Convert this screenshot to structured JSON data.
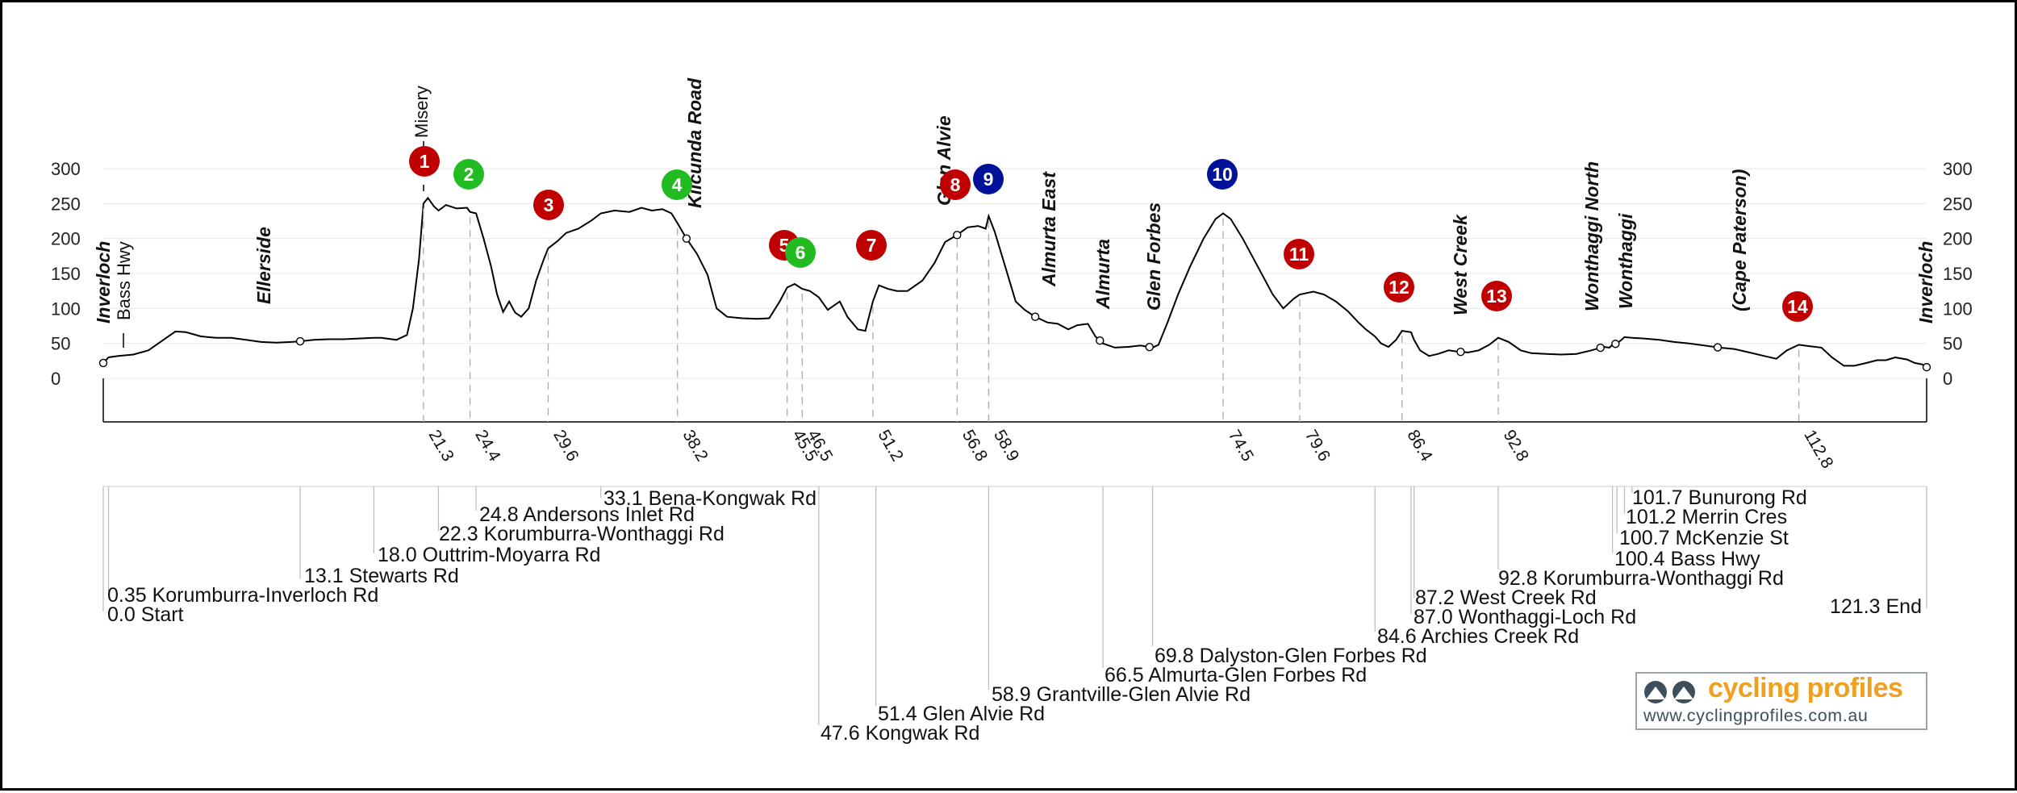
{
  "chart_data": {
    "type": "line",
    "title": "",
    "xlabel": "",
    "ylabel": "",
    "y_ticks": [
      "300",
      "250",
      "200",
      "150",
      "100",
      "50",
      "0"
    ],
    "ylim": [
      0,
      300
    ],
    "xlim": [
      0,
      121.3
    ],
    "grid": true,
    "profile": [
      [
        0,
        22
      ],
      [
        0.35,
        30
      ],
      [
        1,
        32
      ],
      [
        2,
        34
      ],
      [
        3,
        40
      ],
      [
        4,
        55
      ],
      [
        4.8,
        67
      ],
      [
        5.5,
        66
      ],
      [
        6.5,
        60
      ],
      [
        7.5,
        58
      ],
      [
        8.5,
        58
      ],
      [
        9.5,
        55
      ],
      [
        10.5,
        52
      ],
      [
        11.5,
        51
      ],
      [
        12.5,
        52
      ],
      [
        13.1,
        53
      ],
      [
        14,
        55
      ],
      [
        15,
        56
      ],
      [
        16,
        56
      ],
      [
        17,
        57
      ],
      [
        18,
        58
      ],
      [
        18.5,
        58
      ],
      [
        19.5,
        55
      ],
      [
        20.2,
        62
      ],
      [
        20.6,
        100
      ],
      [
        21,
        170
      ],
      [
        21.3,
        250
      ],
      [
        21.6,
        258
      ],
      [
        22,
        246
      ],
      [
        22.3,
        240
      ],
      [
        22.8,
        248
      ],
      [
        23.5,
        243
      ],
      [
        24.2,
        244
      ],
      [
        24.4,
        238
      ],
      [
        24.8,
        236
      ],
      [
        25.3,
        200
      ],
      [
        25.8,
        160
      ],
      [
        26.2,
        120
      ],
      [
        26.6,
        95
      ],
      [
        27,
        110
      ],
      [
        27.4,
        94
      ],
      [
        27.8,
        88
      ],
      [
        28.3,
        100
      ],
      [
        28.8,
        140
      ],
      [
        29.3,
        170
      ],
      [
        29.6,
        186
      ],
      [
        30.2,
        196
      ],
      [
        30.8,
        208
      ],
      [
        31.6,
        214
      ],
      [
        32.5,
        226
      ],
      [
        33.1,
        236
      ],
      [
        34,
        240
      ],
      [
        35,
        238
      ],
      [
        35.8,
        244
      ],
      [
        36.5,
        240
      ],
      [
        37.2,
        242
      ],
      [
        37.8,
        236
      ],
      [
        38.2,
        222
      ],
      [
        38.8,
        200
      ],
      [
        39.5,
        178
      ],
      [
        40.2,
        148
      ],
      [
        40.8,
        100
      ],
      [
        41.5,
        88
      ],
      [
        42.5,
        86
      ],
      [
        43.5,
        85
      ],
      [
        44.3,
        86
      ],
      [
        45,
        110
      ],
      [
        45.5,
        130
      ],
      [
        46,
        135
      ],
      [
        46.5,
        128
      ],
      [
        47,
        125
      ],
      [
        47.6,
        116
      ],
      [
        48.2,
        98
      ],
      [
        49,
        110
      ],
      [
        49.5,
        88
      ],
      [
        50.2,
        70
      ],
      [
        50.7,
        68
      ],
      [
        51.2,
        110
      ],
      [
        51.6,
        133
      ],
      [
        52.2,
        128
      ],
      [
        52.8,
        125
      ],
      [
        53.5,
        125
      ],
      [
        54.5,
        140
      ],
      [
        55.3,
        165
      ],
      [
        56,
        195
      ],
      [
        56.8,
        205
      ],
      [
        57.5,
        216
      ],
      [
        58.2,
        218
      ],
      [
        58.7,
        214
      ],
      [
        58.9,
        232
      ],
      [
        59.3,
        210
      ],
      [
        60,
        160
      ],
      [
        60.7,
        110
      ],
      [
        61.3,
        98
      ],
      [
        62,
        88
      ],
      [
        62.8,
        80
      ],
      [
        63.5,
        78
      ],
      [
        64.2,
        70
      ],
      [
        64.8,
        76
      ],
      [
        65.5,
        78
      ],
      [
        66,
        60
      ],
      [
        66.5,
        50
      ],
      [
        67.3,
        44
      ],
      [
        68.2,
        45
      ],
      [
        69,
        47
      ],
      [
        69.8,
        44
      ],
      [
        70.2,
        48
      ],
      [
        70.8,
        80
      ],
      [
        71.5,
        120
      ],
      [
        72.3,
        160
      ],
      [
        73.2,
        200
      ],
      [
        74,
        228
      ],
      [
        74.5,
        236
      ],
      [
        75,
        228
      ],
      [
        75.8,
        200
      ],
      [
        76.8,
        160
      ],
      [
        77.8,
        120
      ],
      [
        78.5,
        100
      ],
      [
        79.2,
        114
      ],
      [
        79.6,
        120
      ],
      [
        80.5,
        124
      ],
      [
        81.2,
        120
      ],
      [
        82,
        110
      ],
      [
        82.8,
        96
      ],
      [
        83.5,
        80
      ],
      [
        84,
        70
      ],
      [
        84.6,
        60
      ],
      [
        85,
        50
      ],
      [
        85.5,
        45
      ],
      [
        86,
        55
      ],
      [
        86.4,
        68
      ],
      [
        87,
        66
      ],
      [
        87.2,
        55
      ],
      [
        87.6,
        40
      ],
      [
        88.2,
        32
      ],
      [
        88.8,
        35
      ],
      [
        89.5,
        40
      ],
      [
        90.2,
        38
      ],
      [
        90.8,
        37
      ],
      [
        91.5,
        40
      ],
      [
        92.2,
        48
      ],
      [
        92.8,
        58
      ],
      [
        93.5,
        52
      ],
      [
        94.3,
        40
      ],
      [
        95,
        36
      ],
      [
        96,
        35
      ],
      [
        97,
        34
      ],
      [
        98,
        35
      ],
      [
        99,
        40
      ],
      [
        99.8,
        45
      ],
      [
        100.2,
        44
      ],
      [
        100.4,
        48
      ],
      [
        100.7,
        50
      ],
      [
        101,
        55
      ],
      [
        101.2,
        59
      ],
      [
        101.7,
        58
      ],
      [
        102.5,
        57
      ],
      [
        103.5,
        55
      ],
      [
        104.5,
        52
      ],
      [
        105.5,
        50
      ],
      [
        106.5,
        47
      ],
      [
        107.5,
        44
      ],
      [
        108.5,
        42
      ],
      [
        109.5,
        37
      ],
      [
        110.5,
        32
      ],
      [
        111.3,
        28
      ],
      [
        112,
        40
      ],
      [
        112.8,
        48
      ],
      [
        113.5,
        46
      ],
      [
        114.3,
        44
      ],
      [
        115,
        30
      ],
      [
        115.8,
        18
      ],
      [
        116.5,
        18
      ],
      [
        117.3,
        22
      ],
      [
        118,
        26
      ],
      [
        118.6,
        26
      ],
      [
        119.2,
        30
      ],
      [
        120,
        27
      ],
      [
        120.5,
        22
      ],
      [
        121,
        20
      ],
      [
        121.3,
        16
      ]
    ],
    "km_markers": [
      "21.3",
      "24.4",
      "29.6",
      "38.2",
      "45.5",
      "46.5",
      "51.2",
      "56.8",
      "58.9",
      "74.5",
      "79.6",
      "86.4",
      "92.8",
      "112.8"
    ],
    "markers": [
      {
        "n": "1",
        "color": "#c00000",
        "km": 21.3
      },
      {
        "n": "2",
        "color": "#22bb22",
        "km": 24.4
      },
      {
        "n": "3",
        "color": "#c00000",
        "km": 29.6
      },
      {
        "n": "4",
        "color": "#22bb22",
        "km": 38.2
      },
      {
        "n": "5",
        "color": "#c00000",
        "km": 45.5
      },
      {
        "n": "6",
        "color": "#22bb22",
        "km": 46.5
      },
      {
        "n": "7",
        "color": "#c00000",
        "km": 51.2
      },
      {
        "n": "8",
        "color": "#c00000",
        "km": 56.8
      },
      {
        "n": "9",
        "color": "#00129a",
        "km": 58.9
      },
      {
        "n": "10",
        "color": "#00129a",
        "km": 74.5
      },
      {
        "n": "11",
        "color": "#c00000",
        "km": 79.6
      },
      {
        "n": "12",
        "color": "#c00000",
        "km": 86.4
      },
      {
        "n": "13",
        "color": "#c00000",
        "km": 92.8
      },
      {
        "n": "14",
        "color": "#c00000",
        "km": 112.8
      }
    ],
    "places": [
      {
        "label": "Inverloch",
        "style": "bold-italic"
      },
      {
        "label": "Bass Hwy",
        "style": "normal"
      },
      {
        "label": "Ellerside",
        "style": "bold-italic"
      },
      {
        "label": "Misery",
        "style": "normal"
      },
      {
        "label": "Kilcunda Road",
        "style": "bold-italic"
      },
      {
        "label": "Glen Alvie",
        "style": "bold-italic"
      },
      {
        "label": "Almurta East",
        "style": "bold-italic"
      },
      {
        "label": "Almurta",
        "style": "bold-italic"
      },
      {
        "label": "Glen Forbes",
        "style": "bold-italic"
      },
      {
        "label": "West Creek",
        "style": "bold-italic"
      },
      {
        "label": "Wonthaggi North",
        "style": "bold-italic"
      },
      {
        "label": "Wonthaggi",
        "style": "bold-italic"
      },
      {
        "label": "(Cape Paterson)",
        "style": "bold-italic"
      },
      {
        "label": "Inverloch",
        "style": "bold-italic"
      }
    ],
    "roads": [
      "0.0 Start",
      "0.35 Korumburra-Inverloch Rd",
      "13.1 Stewarts Rd",
      "18.0 Outtrim-Moyarra Rd",
      "22.3 Korumburra-Wonthaggi Rd",
      "24.8 Andersons Inlet Rd",
      "33.1 Bena-Kongwak Rd",
      "47.6 Kongwak Rd",
      "51.4 Glen Alvie Rd",
      "58.9 Grantville-Glen Alvie Rd",
      "66.5 Almurta-Glen Forbes Rd",
      "69.8 Dalyston-Glen Forbes Rd",
      "84.6 Archies Creek Rd",
      "87.0 Wonthaggi-Loch Rd",
      "87.2 West Creek Rd",
      "92.8 Korumburra-Wonthaggi Rd",
      "100.4 Bass Hwy",
      "100.7 McKenzie St",
      "101.2 Merrin Cres",
      "101.7 Bunurong Rd",
      "121.3 End"
    ]
  },
  "logo": {
    "name": "cycling profiles",
    "url": "www.cyclingprofiles.com.au",
    "color": "#f0a020"
  }
}
